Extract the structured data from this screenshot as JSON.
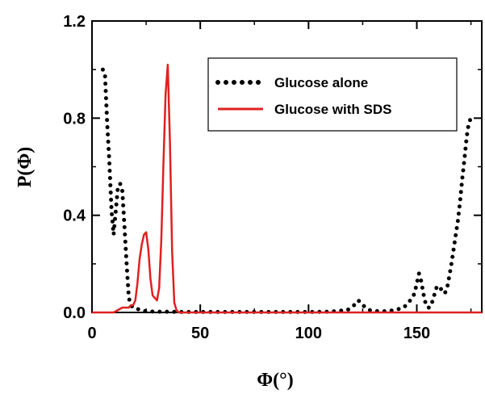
{
  "chart_data": {
    "type": "line",
    "xlabel": "Φ(°)",
    "ylabel": "P(Φ)",
    "xlim": [
      0,
      180
    ],
    "ylim": [
      0,
      1.2
    ],
    "x_ticks": [
      0,
      50,
      100,
      150
    ],
    "x_tick_labels": [
      "0",
      "50",
      "100",
      "150"
    ],
    "y_ticks": [
      0.0,
      0.4,
      0.8,
      1.2
    ],
    "y_tick_labels": [
      "0.0",
      "0.4",
      "0.8",
      "1.2"
    ],
    "grid": false,
    "legend_position": "top-right",
    "series": [
      {
        "name": "Glucose alone",
        "style": "dotted",
        "color": "#000000",
        "x": [
          5,
          6,
          7,
          8,
          9,
          10,
          11,
          12,
          13,
          14,
          15,
          16,
          17,
          18,
          19,
          20,
          22,
          25,
          30,
          35,
          40,
          50,
          60,
          70,
          80,
          90,
          100,
          110,
          118,
          121,
          123,
          125,
          128,
          132,
          136,
          140,
          144,
          146,
          148,
          149,
          150,
          151,
          152,
          153,
          154,
          155,
          156,
          157,
          158,
          159,
          160,
          161,
          162,
          163,
          164,
          165,
          166,
          167,
          168,
          169,
          170,
          171,
          172,
          173,
          174,
          175
        ],
        "y": [
          1.0,
          0.98,
          0.78,
          0.62,
          0.42,
          0.32,
          0.42,
          0.52,
          0.53,
          0.5,
          0.35,
          0.2,
          0.06,
          0.03,
          0.02,
          0.02,
          0.01,
          0.005,
          0.003,
          0.003,
          0.002,
          0.002,
          0.002,
          0.002,
          0.002,
          0.002,
          0.002,
          0.003,
          0.01,
          0.03,
          0.05,
          0.03,
          0.01,
          0.005,
          0.005,
          0.01,
          0.02,
          0.04,
          0.06,
          0.08,
          0.12,
          0.16,
          0.13,
          0.08,
          0.04,
          0.02,
          0.02,
          0.04,
          0.07,
          0.1,
          0.11,
          0.1,
          0.08,
          0.08,
          0.1,
          0.15,
          0.2,
          0.26,
          0.32,
          0.38,
          0.46,
          0.55,
          0.63,
          0.72,
          0.78,
          0.8
        ]
      },
      {
        "name": "Glucose with SDS",
        "style": "solid",
        "color": "#e02020",
        "x": [
          0,
          10,
          12,
          14,
          16,
          17,
          18,
          19,
          20,
          21,
          22,
          23,
          24,
          25,
          26,
          27,
          28,
          29,
          30,
          31,
          32,
          33,
          34,
          35,
          36,
          37,
          38,
          39,
          40,
          50,
          100,
          150,
          180
        ],
        "y": [
          0,
          0,
          0.01,
          0.02,
          0.02,
          0.02,
          0.03,
          0.03,
          0.05,
          0.12,
          0.22,
          0.28,
          0.32,
          0.33,
          0.26,
          0.14,
          0.07,
          0.06,
          0.05,
          0.1,
          0.3,
          0.62,
          0.9,
          1.02,
          0.7,
          0.25,
          0.04,
          0.01,
          0,
          0,
          0,
          0,
          0
        ]
      }
    ]
  }
}
